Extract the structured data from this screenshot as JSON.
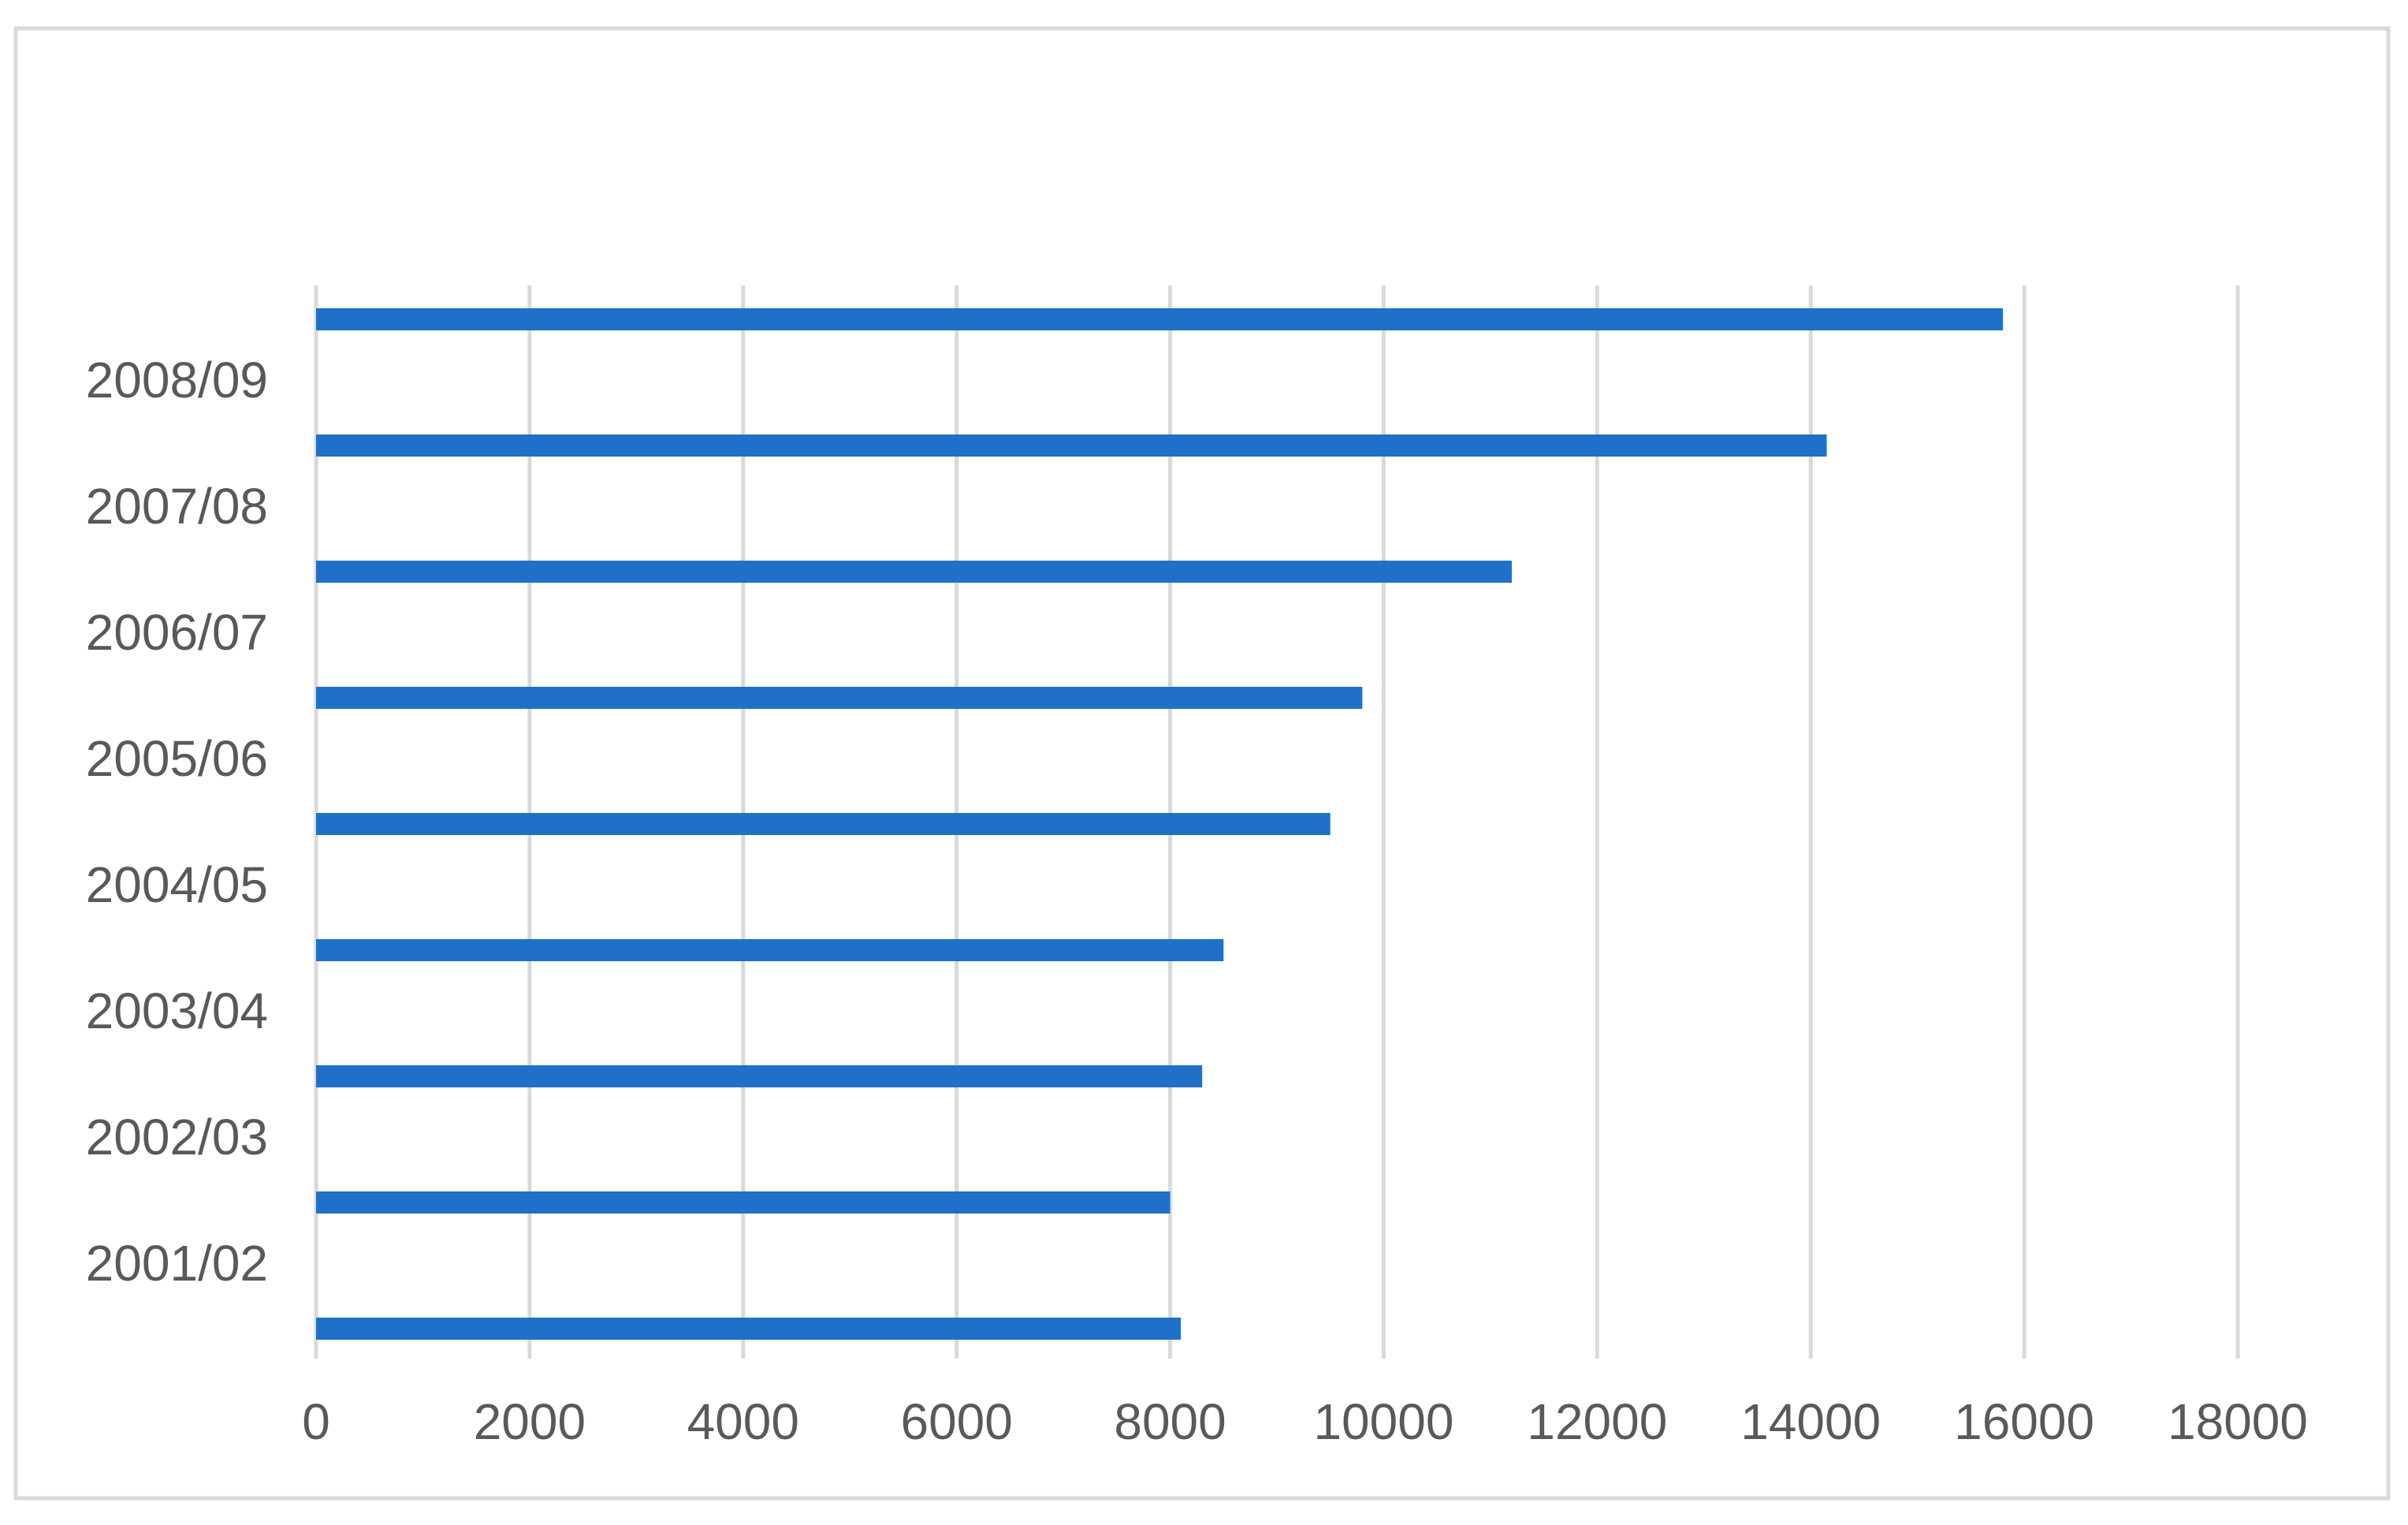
{
  "chart_data": {
    "type": "bar",
    "orientation": "horizontal",
    "categories": [
      null,
      "2001/02",
      "2002/03",
      "2003/04",
      "2004/05",
      "2005/06",
      "2006/07",
      "2007/08",
      "2008/09"
    ],
    "values": [
      8100,
      8000,
      8300,
      8500,
      9500,
      9800,
      11200,
      14150,
      15800
    ],
    "color": "#1f70c8",
    "xlim": [
      0,
      18000
    ],
    "xticks": [
      0,
      2000,
      4000,
      6000,
      8000,
      10000,
      12000,
      14000,
      16000,
      18000
    ],
    "grid": true
  }
}
